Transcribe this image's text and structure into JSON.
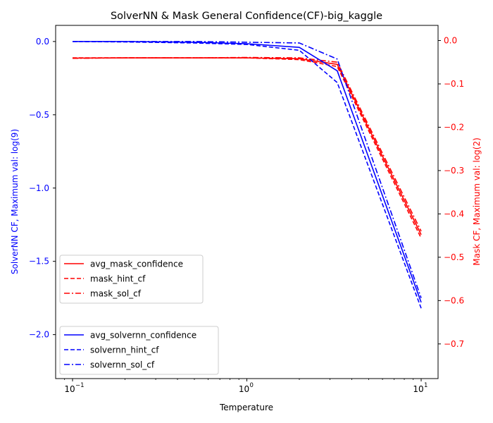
{
  "chart_data": {
    "type": "line",
    "title": "SolverNN & Mask General Confidence(CF)-big_kaggle",
    "xlabel": "Temperature",
    "xscale": "log",
    "xlim": [
      0.08,
      12.5
    ],
    "x_ticks": [
      0.1,
      1,
      10
    ],
    "x_tick_labels": [
      "10",
      "10",
      "10"
    ],
    "x_tick_exponents": [
      "−1",
      "0",
      "1"
    ],
    "x": [
      0.1,
      0.2,
      0.5,
      1.0,
      2.0,
      3.3,
      10.0
    ],
    "left_axis": {
      "label": "SolverNN CF, Maximum val: log(9)",
      "color": "#0000ff",
      "ylim": [
        -2.3,
        0.11
      ],
      "ticks": [
        0.0,
        -0.5,
        -1.0,
        -1.5,
        -2.0
      ],
      "tick_labels": [
        "0.0",
        "−0.5",
        "−1.0",
        "−1.5",
        "−2.0"
      ]
    },
    "right_axis": {
      "label": "Mask CF, Maximum val: log(2)",
      "color": "#ff0000",
      "ylim": [
        -0.78,
        0.035
      ],
      "ticks": [
        0.0,
        -0.1,
        -0.2,
        -0.3,
        -0.4,
        -0.5,
        -0.6,
        -0.7
      ],
      "tick_labels": [
        "0.0",
        "−0.1",
        "−0.2",
        "−0.3",
        "−0.4",
        "−0.5",
        "−0.6",
        "−0.7"
      ]
    },
    "series": [
      {
        "name": "avg_mask_confidence",
        "axis": "right",
        "color": "#ff0000",
        "dash": "solid",
        "values": [
          -0.0405,
          -0.04,
          -0.04,
          -0.04,
          -0.042,
          -0.055,
          -0.448
        ]
      },
      {
        "name": "mask_hint_cf",
        "axis": "right",
        "color": "#ff0000",
        "dash": "dashed",
        "values": [
          -0.04,
          -0.04,
          -0.04,
          -0.04,
          -0.044,
          -0.06,
          -0.456
        ]
      },
      {
        "name": "mask_sol_cf",
        "axis": "right",
        "color": "#ff0000",
        "dash": "dashdot",
        "values": [
          -0.041,
          -0.04,
          -0.04,
          -0.039,
          -0.04,
          -0.05,
          -0.44
        ]
      },
      {
        "name": "avg_solvernn_confidence",
        "axis": "left",
        "color": "#0000ff",
        "dash": "solid",
        "values": [
          0.0,
          0.0,
          -0.005,
          -0.015,
          -0.04,
          -0.2,
          -1.78
        ]
      },
      {
        "name": "solvernn_hint_cf",
        "axis": "left",
        "color": "#0000ff",
        "dash": "dashed",
        "values": [
          0.0,
          -0.003,
          -0.01,
          -0.02,
          -0.06,
          -0.28,
          -1.82
        ]
      },
      {
        "name": "solvernn_sol_cf",
        "axis": "left",
        "color": "#0000ff",
        "dash": "dashdot",
        "values": [
          0.0,
          0.0,
          0.0,
          -0.005,
          -0.01,
          -0.12,
          -1.75
        ]
      }
    ],
    "legends": [
      {
        "placement": "center-left",
        "entries": [
          "avg_mask_confidence",
          "mask_hint_cf",
          "mask_sol_cf"
        ]
      },
      {
        "placement": "lower-left",
        "entries": [
          "avg_solvernn_confidence",
          "solvernn_hint_cf",
          "solvernn_sol_cf"
        ]
      }
    ],
    "grid": false
  }
}
